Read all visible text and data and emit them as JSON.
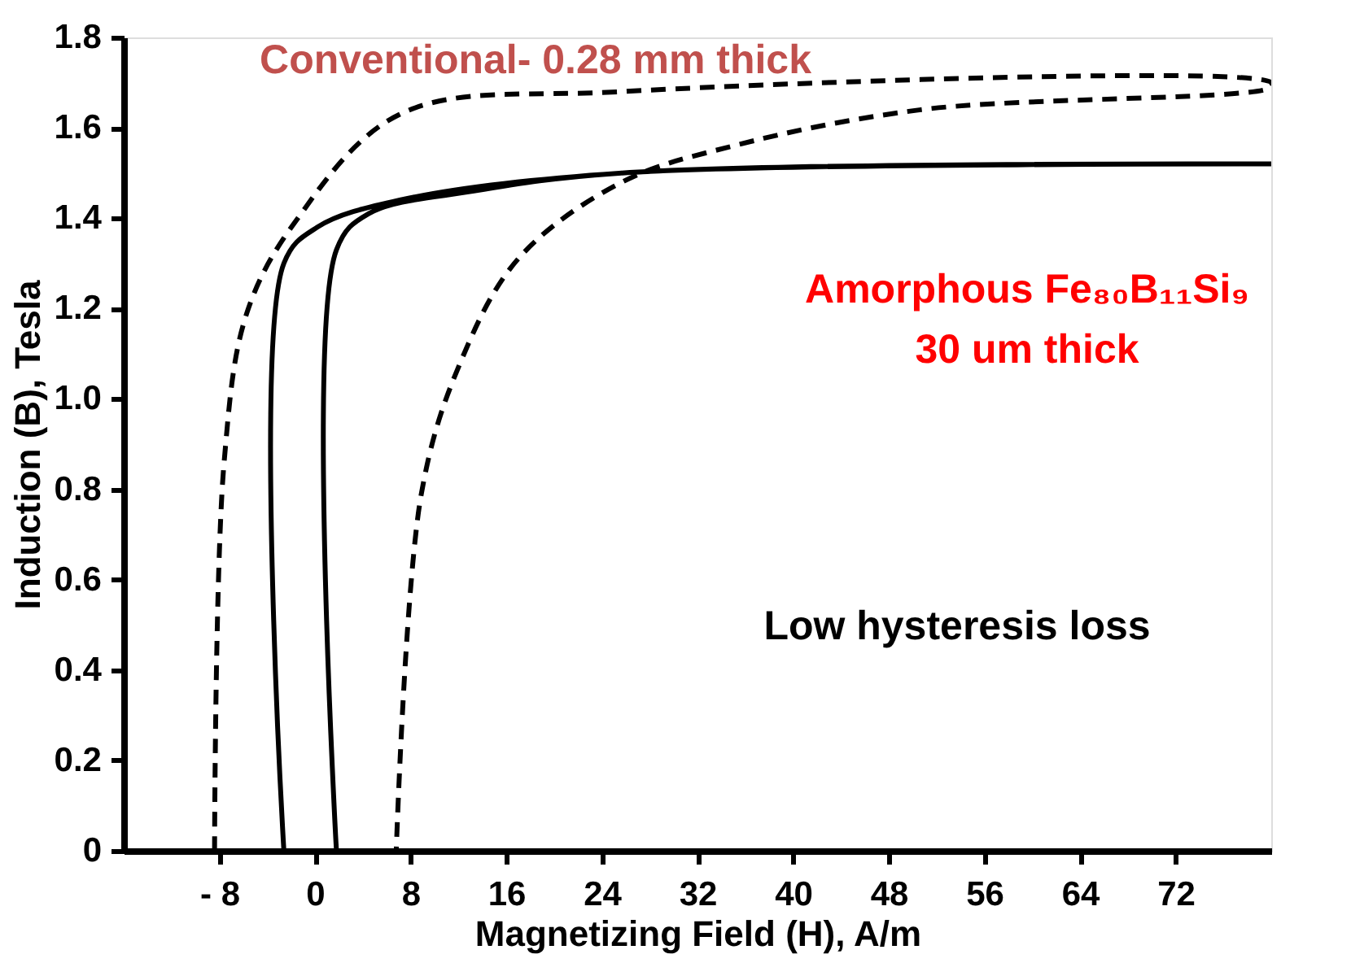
{
  "chart_data": {
    "type": "line",
    "xlabel": "Magnetizing Field (H), A/m",
    "ylabel": "Induction (B), Tesla",
    "xlim": [
      -16,
      80
    ],
    "ylim": [
      0,
      1.8
    ],
    "xticks": [
      {
        "value": -8,
        "label": "- 8"
      },
      0,
      8,
      16,
      24,
      32,
      40,
      48,
      56,
      64,
      72
    ],
    "yticks": [
      {
        "value": 0,
        "label": "0"
      },
      0.2,
      0.4,
      0.6,
      0.8,
      {
        "value": 1,
        "label": "1.0"
      },
      1.2,
      1.4,
      1.6,
      1.8
    ],
    "grid": false,
    "marker": "none",
    "series": [
      {
        "color": "#000000",
        "line_style": "dashed",
        "x": [
          -8.4,
          -7.6,
          -5.7,
          -1.7,
          7.1,
          25.7,
          80,
          80,
          50.7,
          35,
          25.7,
          17,
          12,
          8.9,
          6.8
        ],
        "values": [
          0,
          0.86,
          1.19,
          1.39,
          1.63,
          1.68,
          1.7,
          1.69,
          1.64,
          1.56,
          1.48,
          1.31,
          1.07,
          0.79,
          0
        ]
      },
      {
        "color": "#000000",
        "line_style": "solid",
        "x": [
          -2.6,
          -2.6,
          0.2,
          7.1,
          25.7,
          80,
          80,
          25.7,
          13.3,
          4.5,
          1.8,
          1.8
        ],
        "values": [
          0,
          1.3,
          1.38,
          1.44,
          1.5,
          1.52,
          1.52,
          1.5,
          1.46,
          1.41,
          1.33,
          0
        ]
      }
    ],
    "annotations": [
      "Conventional- 0.28 mm thick",
      "Amorphous Fe₈₀B₁₁Si₉",
      "30 um thick",
      "Low hysteresis loss"
    ]
  }
}
